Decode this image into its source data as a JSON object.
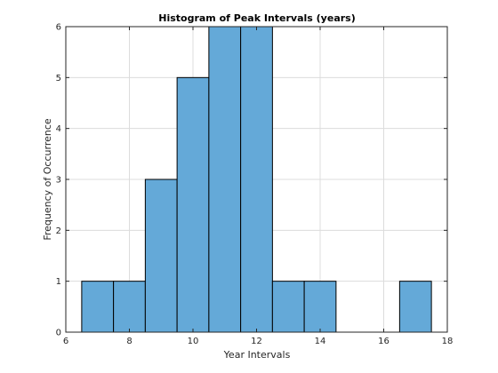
{
  "chart_data": {
    "type": "bar",
    "title": "Histogram of Peak Intervals (years)",
    "xlabel": "Year Intervals",
    "ylabel": "Frequency of Occurrence",
    "xlim": [
      6,
      18
    ],
    "ylim": [
      0,
      6
    ],
    "xticks": [
      "6",
      "8",
      "10",
      "12",
      "14",
      "16",
      "18"
    ],
    "yticks": [
      "0",
      "1",
      "2",
      "3",
      "4",
      "5",
      "6"
    ],
    "grid": true,
    "bin_width": 1,
    "bins": [
      {
        "center": 7,
        "value": 1
      },
      {
        "center": 8,
        "value": 1
      },
      {
        "center": 9,
        "value": 3
      },
      {
        "center": 10,
        "value": 5
      },
      {
        "center": 11,
        "value": 6
      },
      {
        "center": 12,
        "value": 6
      },
      {
        "center": 13,
        "value": 1
      },
      {
        "center": 14,
        "value": 1
      },
      {
        "center": 15,
        "value": 0
      },
      {
        "center": 16,
        "value": 0
      },
      {
        "center": 17,
        "value": 1
      }
    ],
    "colors": {
      "bar_fill": "#64a9d8",
      "bar_edge": "#000000",
      "grid": "#dcdcdc",
      "axes": "#262626"
    }
  }
}
